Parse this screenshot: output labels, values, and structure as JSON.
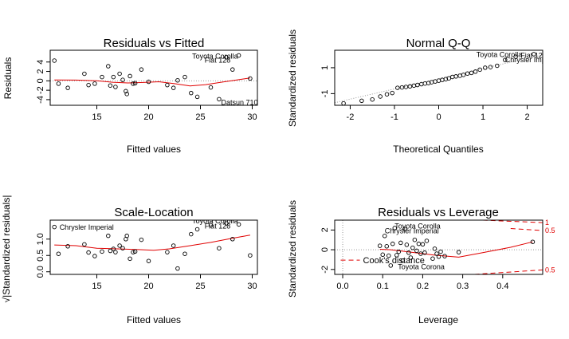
{
  "chart_data": [
    {
      "type": "scatter",
      "title": "Residuals vs Fitted",
      "xlabel": "Fitted values",
      "ylabel": "Residuals",
      "xlim": [
        10.5,
        30.5
      ],
      "ylim": [
        -5.2,
        6.5
      ],
      "xticks": [
        15,
        20,
        25,
        30
      ],
      "xtick_labels": [
        "15",
        "20",
        "25",
        "30"
      ],
      "yticks": [
        -4,
        -2,
        0,
        2,
        4
      ],
      "ytick_labels": [
        "-4",
        "-2",
        "0",
        "2",
        "4"
      ],
      "refline": {
        "y": 0,
        "style": "dotted",
        "color": "#999999"
      },
      "points": [
        {
          "x": 10.9,
          "y": 4.3
        },
        {
          "x": 11.3,
          "y": -0.6
        },
        {
          "x": 12.2,
          "y": -1.5
        },
        {
          "x": 13.8,
          "y": 1.5
        },
        {
          "x": 14.2,
          "y": -0.9
        },
        {
          "x": 14.8,
          "y": -0.6
        },
        {
          "x": 15.5,
          "y": 0.8
        },
        {
          "x": 16.1,
          "y": 3.1
        },
        {
          "x": 16.3,
          "y": -1.0
        },
        {
          "x": 16.6,
          "y": 0.8
        },
        {
          "x": 16.8,
          "y": -1.3
        },
        {
          "x": 17.2,
          "y": 1.5
        },
        {
          "x": 17.5,
          "y": 0.2
        },
        {
          "x": 17.8,
          "y": -2.2
        },
        {
          "x": 17.9,
          "y": -2.8
        },
        {
          "x": 18.2,
          "y": 1.0
        },
        {
          "x": 18.5,
          "y": -0.6
        },
        {
          "x": 18.7,
          "y": -0.5
        },
        {
          "x": 19.3,
          "y": 2.4
        },
        {
          "x": 20.0,
          "y": -0.2
        },
        {
          "x": 21.8,
          "y": -0.9
        },
        {
          "x": 22.4,
          "y": -1.5
        },
        {
          "x": 22.8,
          "y": 0.1
        },
        {
          "x": 23.5,
          "y": 0.8
        },
        {
          "x": 24.1,
          "y": -2.6
        },
        {
          "x": 24.7,
          "y": -3.4
        },
        {
          "x": 26.0,
          "y": -1.4
        },
        {
          "x": 26.8,
          "y": -3.9
        },
        {
          "x": 27.5,
          "y": 5.0
        },
        {
          "x": 28.1,
          "y": 2.4
        },
        {
          "x": 28.7,
          "y": 5.4
        },
        {
          "x": 29.8,
          "y": 0.5
        }
      ],
      "smooth": {
        "color": "#e00000",
        "x": [
          10.9,
          13,
          15,
          16.5,
          18,
          19.5,
          21,
          22.5,
          24,
          25.5,
          27,
          28.5,
          29.8
        ],
        "y": [
          0.2,
          0.15,
          0.0,
          -0.3,
          -0.45,
          -0.35,
          -0.2,
          -0.6,
          -1.1,
          -0.8,
          -0.3,
          0.2,
          0.6
        ]
      },
      "annotations": [
        {
          "text": "Toyota Corolla",
          "x": 24.2,
          "y": 5.2,
          "align": "start"
        },
        {
          "text": "Fiat 128",
          "x": 25.4,
          "y": 4.4,
          "align": "start"
        },
        {
          "text": "Datsun 710",
          "x": 27.0,
          "y": -4.6,
          "align": "start"
        }
      ]
    },
    {
      "type": "scatter",
      "title": "Normal Q-Q",
      "xlabel": "Theoretical Quantiles",
      "ylabel": "Standardized residuals",
      "xlim": [
        -2.35,
        2.35
      ],
      "ylim": [
        -1.9,
        2.35
      ],
      "xticks": [
        -2,
        -1,
        0,
        1,
        2
      ],
      "xtick_labels": [
        "-2",
        "-1",
        "0",
        "1",
        "2"
      ],
      "yticks": [
        -1,
        1
      ],
      "ytick_labels": [
        "-1",
        "1"
      ],
      "points": [
        {
          "x": -2.15,
          "y": -1.75
        },
        {
          "x": -1.74,
          "y": -1.55
        },
        {
          "x": -1.5,
          "y": -1.45
        },
        {
          "x": -1.32,
          "y": -1.22
        },
        {
          "x": -1.17,
          "y": -1.05
        },
        {
          "x": -1.05,
          "y": -0.95
        },
        {
          "x": -0.93,
          "y": -0.55
        },
        {
          "x": -0.83,
          "y": -0.52
        },
        {
          "x": -0.74,
          "y": -0.48
        },
        {
          "x": -0.65,
          "y": -0.44
        },
        {
          "x": -0.56,
          "y": -0.38
        },
        {
          "x": -0.48,
          "y": -0.33
        },
        {
          "x": -0.39,
          "y": -0.27
        },
        {
          "x": -0.31,
          "y": -0.22
        },
        {
          "x": -0.23,
          "y": -0.18
        },
        {
          "x": -0.16,
          "y": -0.12
        },
        {
          "x": -0.08,
          "y": -0.06
        },
        {
          "x": 0.0,
          "y": 0.0
        },
        {
          "x": 0.08,
          "y": 0.06
        },
        {
          "x": 0.16,
          "y": 0.12
        },
        {
          "x": 0.23,
          "y": 0.18
        },
        {
          "x": 0.31,
          "y": 0.29
        },
        {
          "x": 0.39,
          "y": 0.33
        },
        {
          "x": 0.48,
          "y": 0.38
        },
        {
          "x": 0.56,
          "y": 0.45
        },
        {
          "x": 0.65,
          "y": 0.55
        },
        {
          "x": 0.74,
          "y": 0.6
        },
        {
          "x": 0.83,
          "y": 0.7
        },
        {
          "x": 0.93,
          "y": 0.85
        },
        {
          "x": 1.05,
          "y": 1.0
        },
        {
          "x": 1.17,
          "y": 1.05
        },
        {
          "x": 1.32,
          "y": 1.15
        },
        {
          "x": 1.5,
          "y": 1.6
        },
        {
          "x": 1.74,
          "y": 1.85
        },
        {
          "x": 2.15,
          "y": 2.05
        }
      ],
      "refline": {
        "x": [
          -2.35,
          2.35
        ],
        "y": [
          -1.7,
          2.0
        ],
        "style": "dotted",
        "color": "#999999"
      },
      "annotations": [
        {
          "text": "Toyota Corolla",
          "x": 0.85,
          "y": 2.0,
          "align": "start"
        },
        {
          "text": "Fiat 128",
          "x": 1.85,
          "y": 1.95,
          "align": "start"
        },
        {
          "text": "Chrysler Imperial",
          "x": 1.5,
          "y": 1.62,
          "align": "start"
        }
      ]
    },
    {
      "type": "scatter",
      "title": "Scale-Location",
      "xlabel": "Fitted values",
      "ylabel": "√|Standardized residuals|",
      "xlim": [
        10.5,
        30.5
      ],
      "ylim": [
        -0.08,
        1.58
      ],
      "xticks": [
        15,
        20,
        25,
        30
      ],
      "xtick_labels": [
        "15",
        "20",
        "25",
        "30"
      ],
      "yticks": [
        0.0,
        0.5,
        1.0
      ],
      "ytick_labels": [
        "0.0",
        "0.5",
        "1.0"
      ],
      "points": [
        {
          "x": 10.9,
          "y": 1.37
        },
        {
          "x": 11.3,
          "y": 0.55
        },
        {
          "x": 12.2,
          "y": 0.78
        },
        {
          "x": 13.8,
          "y": 0.84
        },
        {
          "x": 14.2,
          "y": 0.59
        },
        {
          "x": 14.8,
          "y": 0.48
        },
        {
          "x": 15.5,
          "y": 0.62
        },
        {
          "x": 16.1,
          "y": 1.1
        },
        {
          "x": 16.3,
          "y": 0.64
        },
        {
          "x": 16.6,
          "y": 0.7
        },
        {
          "x": 16.8,
          "y": 0.6
        },
        {
          "x": 17.2,
          "y": 0.8
        },
        {
          "x": 17.5,
          "y": 0.72
        },
        {
          "x": 17.8,
          "y": 1.0
        },
        {
          "x": 17.9,
          "y": 1.1
        },
        {
          "x": 18.2,
          "y": 0.4
        },
        {
          "x": 18.5,
          "y": 0.6
        },
        {
          "x": 18.7,
          "y": 0.62
        },
        {
          "x": 19.3,
          "y": 0.98
        },
        {
          "x": 20.0,
          "y": 0.33
        },
        {
          "x": 21.8,
          "y": 0.6
        },
        {
          "x": 22.4,
          "y": 0.8
        },
        {
          "x": 22.8,
          "y": 0.1
        },
        {
          "x": 23.5,
          "y": 0.55
        },
        {
          "x": 24.1,
          "y": 1.15
        },
        {
          "x": 24.7,
          "y": 1.3
        },
        {
          "x": 26.0,
          "y": 1.43
        },
        {
          "x": 26.8,
          "y": 0.72
        },
        {
          "x": 27.5,
          "y": 1.48
        },
        {
          "x": 28.1,
          "y": 1.0
        },
        {
          "x": 28.7,
          "y": 1.45
        },
        {
          "x": 29.8,
          "y": 0.5
        }
      ],
      "smooth": {
        "color": "#e00000",
        "x": [
          10.9,
          13,
          15,
          17,
          19,
          20.5,
          22,
          24,
          26,
          28,
          29.8
        ],
        "y": [
          0.82,
          0.8,
          0.72,
          0.7,
          0.68,
          0.66,
          0.7,
          0.8,
          0.9,
          1.02,
          1.12
        ]
      },
      "annotations": [
        {
          "text": "Chrysler Imperial",
          "x": 11.4,
          "y": 1.36,
          "align": "start"
        },
        {
          "text": "Toyota Corolla",
          "x": 24.2,
          "y": 1.55,
          "align": "start"
        },
        {
          "text": "Fiat 128",
          "x": 25.4,
          "y": 1.4,
          "align": "start"
        }
      ]
    },
    {
      "type": "scatter",
      "title": "Residuals vs Leverage",
      "xlabel": "Leverage",
      "ylabel": "Standardized residuals",
      "xlim": [
        -0.02,
        0.5
      ],
      "ylim": [
        -2.5,
        3.0
      ],
      "xticks": [
        0.0,
        0.1,
        0.2,
        0.3,
        0.4
      ],
      "xtick_labels": [
        "0.0",
        "0.1",
        "0.2",
        "0.3",
        "0.4"
      ],
      "yticks": [
        -2,
        0,
        2
      ],
      "ytick_labels": [
        "-2",
        "0",
        "2"
      ],
      "points": [
        {
          "x": 0.093,
          "y": 0.4
        },
        {
          "x": 0.1,
          "y": -0.5
        },
        {
          "x": 0.105,
          "y": 1.4
        },
        {
          "x": 0.11,
          "y": 0.35
        },
        {
          "x": 0.115,
          "y": -0.6
        },
        {
          "x": 0.12,
          "y": -1.6
        },
        {
          "x": 0.125,
          "y": 0.6
        },
        {
          "x": 0.13,
          "y": 2.2
        },
        {
          "x": 0.135,
          "y": -0.55
        },
        {
          "x": 0.14,
          "y": -0.2
        },
        {
          "x": 0.145,
          "y": 0.7
        },
        {
          "x": 0.15,
          "y": -1.1
        },
        {
          "x": 0.155,
          "y": 2.1
        },
        {
          "x": 0.16,
          "y": 0.5
        },
        {
          "x": 0.165,
          "y": -0.3
        },
        {
          "x": 0.17,
          "y": -0.8
        },
        {
          "x": 0.175,
          "y": 0.2
        },
        {
          "x": 0.18,
          "y": 1.0
        },
        {
          "x": 0.185,
          "y": -0.1
        },
        {
          "x": 0.19,
          "y": 0.6
        },
        {
          "x": 0.195,
          "y": -0.4
        },
        {
          "x": 0.2,
          "y": 0.55
        },
        {
          "x": 0.205,
          "y": -0.3
        },
        {
          "x": 0.21,
          "y": 0.9
        },
        {
          "x": 0.225,
          "y": -0.9
        },
        {
          "x": 0.23,
          "y": 0.1
        },
        {
          "x": 0.235,
          "y": -0.4
        },
        {
          "x": 0.24,
          "y": -0.7
        },
        {
          "x": 0.245,
          "y": -0.2
        },
        {
          "x": 0.255,
          "y": -0.65
        },
        {
          "x": 0.29,
          "y": -0.25
        },
        {
          "x": 0.475,
          "y": 0.8
        }
      ],
      "vline": {
        "x": 0,
        "style": "dotted",
        "color": "#999999"
      },
      "hline": {
        "y": 0,
        "style": "dotted",
        "color": "#999999"
      },
      "smooth": {
        "color": "#e00000",
        "x": [
          0.093,
          0.12,
          0.15,
          0.18,
          0.2,
          0.23,
          0.26,
          0.29,
          0.35,
          0.42,
          0.475
        ],
        "y": [
          0.05,
          0.0,
          -0.15,
          -0.3,
          -0.4,
          -0.55,
          -0.65,
          -0.75,
          -0.3,
          0.25,
          0.8
        ]
      },
      "cooks": {
        "color": "#e00000",
        "upper": [
          {
            "level": "1",
            "x": [
              0.35,
              0.5
            ],
            "y": [
              3.0,
              2.75
            ]
          },
          {
            "level": "0.5",
            "x": [
              0.42,
              0.5
            ],
            "y": [
              2.15,
              1.95
            ]
          }
        ],
        "lower": [
          {
            "level": "0.5",
            "x": [
              0.31,
              0.5
            ],
            "y": [
              -2.55,
              -2.05
            ]
          }
        ],
        "labels": [
          {
            "text": "1",
            "y": 2.75
          },
          {
            "text": "0.5",
            "y": 1.95
          },
          {
            "text": "0.5",
            "y": -2.05
          }
        ]
      },
      "legend": {
        "label": "Cook's distance",
        "x": -0.005,
        "y": -1.05
      },
      "annotations": [
        {
          "text": "Toyota Corolla",
          "x": 0.13,
          "y": 2.4,
          "align": "start"
        },
        {
          "text": "Chrysler Imperial",
          "x": 0.105,
          "y": 1.9,
          "align": "start"
        },
        {
          "text": "Toyota Corona",
          "x": 0.138,
          "y": -1.75,
          "align": "start"
        }
      ]
    }
  ]
}
